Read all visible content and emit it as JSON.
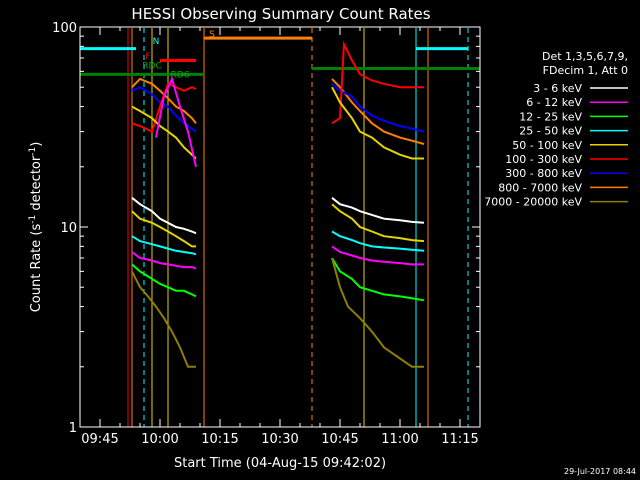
{
  "chart_data": {
    "type": "line",
    "title": "HESSI Observing Summary Count Rates",
    "xlabel": "Start Time (04-Aug-15 09:42:02)",
    "ylabel": "Count Rate (s",
    "ylabel_sup": "-1",
    "ylabel_tail": " detector",
    "ylabel_sup2": "-1",
    "ylabel_end": ")",
    "footer": "29-Jul-2017 08:44",
    "y_scale": "log",
    "ylim": [
      1,
      100
    ],
    "xlim": [
      "09:40",
      "11:20"
    ],
    "x_ticks": [
      "09:45",
      "10:00",
      "10:15",
      "10:30",
      "10:45",
      "11:00",
      "11:15"
    ],
    "y_ticks": [
      "1",
      "10",
      "100"
    ],
    "legend": {
      "placement": "right",
      "header": [
        "Det 1,3,5,6,7,9,",
        "FDecim 1, Att 0"
      ],
      "entries": [
        {
          "label": "3 - 6 keV",
          "color": "#ffffff"
        },
        {
          "label": "6 - 12 keV",
          "color": "#ff00ff"
        },
        {
          "label": "12 - 25 keV",
          "color": "#00ff00"
        },
        {
          "label": "25 - 50 keV",
          "color": "#00ffff"
        },
        {
          "label": "50 - 100 keV",
          "color": "#e5d400"
        },
        {
          "label": "100 - 300 keV",
          "color": "#ff0000"
        },
        {
          "label": "300 - 800 keV",
          "color": "#0000ff"
        },
        {
          "label": "800 - 7000 keV",
          "color": "#ff8000"
        },
        {
          "label": "7000 - 20000 keV",
          "color": "#8b8000"
        }
      ]
    },
    "annotations": [
      {
        "text": "N",
        "color": "#00ffff"
      },
      {
        "text": "F",
        "color": "#ff0000"
      },
      {
        "text": "RDC",
        "color": "#00aa00"
      },
      {
        "text": "RD6",
        "color": "#00aa00"
      },
      {
        "text": "S",
        "color": "#ff8000"
      }
    ],
    "series": [
      {
        "color": "#ff8000",
        "x": [
          "09:53",
          "09:55",
          "09:58",
          "10:00",
          "10:02",
          "10:04",
          "10:06",
          "10:08",
          "10:09"
        ],
        "y": [
          50,
          55,
          52,
          48,
          44,
          40,
          38,
          35,
          33
        ]
      },
      {
        "color": "#ff8000",
        "x": [
          "10:43",
          "10:45",
          "10:48",
          "10:50",
          "10:53",
          "10:56",
          "11:00",
          "11:03",
          "11:06"
        ],
        "y": [
          55,
          50,
          42,
          38,
          33,
          30,
          28,
          27,
          26
        ]
      },
      {
        "color": "#0000ff",
        "x": [
          "09:53",
          "09:55",
          "09:58",
          "10:00",
          "10:02",
          "10:04",
          "10:06",
          "10:08",
          "10:09"
        ],
        "y": [
          48,
          50,
          46,
          42,
          40,
          36,
          33,
          31,
          30
        ]
      },
      {
        "color": "#0000ff",
        "x": [
          "10:43",
          "10:45",
          "10:48",
          "10:50",
          "10:53",
          "10:56",
          "11:00",
          "11:03",
          "11:06"
        ],
        "y": [
          52,
          48,
          45,
          40,
          36,
          34,
          32,
          31,
          30
        ]
      },
      {
        "color": "#ff0000",
        "x": [
          "09:53",
          "09:55",
          "09:58",
          "10:00",
          "10:02",
          "10:04",
          "10:06",
          "10:08",
          "10:09"
        ],
        "y": [
          33,
          32,
          30,
          40,
          52,
          50,
          48,
          50,
          49
        ]
      },
      {
        "color": "#ff0000",
        "x": [
          "10:43",
          "10:45",
          "10:46",
          "10:48",
          "10:50",
          "10:53",
          "10:56",
          "11:00",
          "11:06"
        ],
        "y": [
          33,
          35,
          82,
          68,
          58,
          54,
          52,
          50,
          50
        ]
      },
      {
        "color": "#e5d400",
        "x": [
          "09:53",
          "09:55",
          "09:58",
          "10:00",
          "10:02",
          "10:04",
          "10:06",
          "10:08",
          "10:09"
        ],
        "y": [
          40,
          38,
          35,
          32,
          30,
          28,
          25,
          23,
          22
        ]
      },
      {
        "color": "#e5d400",
        "x": [
          "10:43",
          "10:45",
          "10:48",
          "10:50",
          "10:53",
          "10:56",
          "11:00",
          "11:03",
          "11:06"
        ],
        "y": [
          50,
          42,
          35,
          30,
          28,
          25,
          23,
          22,
          22
        ]
      },
      {
        "color": "#ff00ff",
        "x": [
          "09:59",
          "10:01",
          "10:03",
          "10:05",
          "10:07",
          "10:09"
        ],
        "y": [
          28,
          45,
          55,
          40,
          30,
          20
        ]
      },
      {
        "color": "#ffffff",
        "x": [
          "09:53",
          "09:55",
          "09:58",
          "10:00",
          "10:02",
          "10:04",
          "10:06",
          "10:08",
          "10:09"
        ],
        "y": [
          14,
          13,
          12,
          11,
          10.5,
          10,
          9.8,
          9.5,
          9.3
        ]
      },
      {
        "color": "#ffffff",
        "x": [
          "10:43",
          "10:45",
          "10:48",
          "10:50",
          "10:53",
          "10:56",
          "11:00",
          "11:03",
          "11:06"
        ],
        "y": [
          14,
          13,
          12.5,
          12,
          11.5,
          11,
          10.8,
          10.6,
          10.5
        ]
      },
      {
        "color": "#e5d400",
        "x": [
          "09:53",
          "09:55",
          "09:58",
          "10:00",
          "10:02",
          "10:04",
          "10:06",
          "10:08",
          "10:09"
        ],
        "y": [
          12,
          11,
          10.5,
          10,
          9.5,
          9,
          8.5,
          8,
          8
        ]
      },
      {
        "color": "#e5d400",
        "x": [
          "10:43",
          "10:45",
          "10:48",
          "10:50",
          "10:53",
          "10:56",
          "11:00",
          "11:03",
          "11:06"
        ],
        "y": [
          13,
          12,
          11,
          10,
          9.5,
          9,
          8.8,
          8.6,
          8.5
        ]
      },
      {
        "color": "#00ffff",
        "x": [
          "09:53",
          "09:55",
          "09:58",
          "10:00",
          "10:02",
          "10:04",
          "10:06",
          "10:08",
          "10:09"
        ],
        "y": [
          9,
          8.5,
          8.2,
          8,
          7.8,
          7.6,
          7.5,
          7.4,
          7.3
        ]
      },
      {
        "color": "#00ffff",
        "x": [
          "10:43",
          "10:45",
          "10:48",
          "10:50",
          "10:53",
          "10:56",
          "11:00",
          "11:03",
          "11:06"
        ],
        "y": [
          9.5,
          9,
          8.6,
          8.3,
          8,
          7.9,
          7.8,
          7.7,
          7.6
        ]
      },
      {
        "color": "#ff00ff",
        "x": [
          "09:53",
          "09:55",
          "09:58",
          "10:00",
          "10:02",
          "10:04",
          "10:06",
          "10:08",
          "10:09"
        ],
        "y": [
          7.5,
          7,
          6.8,
          6.6,
          6.5,
          6.4,
          6.3,
          6.3,
          6.2
        ]
      },
      {
        "color": "#ff00ff",
        "x": [
          "10:43",
          "10:45",
          "10:48",
          "10:50",
          "10:53",
          "10:56",
          "11:00",
          "11:03",
          "11:06"
        ],
        "y": [
          8,
          7.5,
          7.2,
          7,
          6.8,
          6.7,
          6.6,
          6.5,
          6.5
        ]
      },
      {
        "color": "#00ff00",
        "x": [
          "09:53",
          "09:55",
          "09:58",
          "10:00",
          "10:02",
          "10:04",
          "10:06",
          "10:08",
          "10:09"
        ],
        "y": [
          6.5,
          6,
          5.5,
          5.2,
          5,
          4.8,
          4.8,
          4.6,
          4.5
        ]
      },
      {
        "color": "#00ff00",
        "x": [
          "10:43",
          "10:45",
          "10:48",
          "10:50",
          "10:53",
          "10:56",
          "11:00",
          "11:03",
          "11:06"
        ],
        "y": [
          7,
          6,
          5.5,
          5,
          4.8,
          4.6,
          4.5,
          4.4,
          4.3
        ]
      },
      {
        "color": "#8b8000",
        "x": [
          "09:53",
          "09:55",
          "09:57",
          "09:59",
          "10:01",
          "10:03",
          "10:05",
          "10:07",
          "10:09"
        ],
        "y": [
          6,
          5,
          4.5,
          4,
          3.5,
          3,
          2.5,
          2,
          2
        ]
      },
      {
        "color": "#8b8000",
        "x": [
          "10:43",
          "10:45",
          "10:47",
          "10:50",
          "10:53",
          "10:56",
          "11:00",
          "11:03",
          "11:06"
        ],
        "y": [
          7,
          5,
          4,
          3.5,
          3,
          2.5,
          2.2,
          2,
          2
        ]
      }
    ],
    "bars": [
      {
        "color": "#00ffff",
        "x0": "09:40",
        "x1": "09:54",
        "y": 78
      },
      {
        "color": "#00ffff",
        "x0": "11:04",
        "x1": "11:17",
        "y": 78
      },
      {
        "color": "#ff8000",
        "x0": "10:11",
        "x1": "10:38",
        "y": 88
      },
      {
        "color": "#ff0000",
        "x0": "10:00",
        "x1": "10:09",
        "y": 68
      },
      {
        "color": "#008000",
        "x0": "09:40",
        "x1": "10:11",
        "y": 58
      },
      {
        "color": "#008000",
        "x0": "10:38",
        "x1": "11:20",
        "y": 62
      }
    ],
    "vlines": [
      {
        "x": "09:40",
        "color": "#00ffff",
        "style": "solid"
      },
      {
        "x": "09:56",
        "color": "#00ffff",
        "style": "dashed"
      },
      {
        "x": "11:04",
        "color": "#00ffff",
        "style": "solid"
      },
      {
        "x": "11:17",
        "color": "#00ffff",
        "style": "dashed"
      },
      {
        "x": "09:53",
        "color": "#ff8000",
        "style": "solid"
      },
      {
        "x": "10:11",
        "color": "#ff8000",
        "style": "solid"
      },
      {
        "x": "10:38",
        "color": "#ff8000",
        "style": "dashed"
      },
      {
        "x": "11:07",
        "color": "#ff8000",
        "style": "solid"
      },
      {
        "x": "09:58",
        "color": "#e5d400",
        "style": "solid"
      },
      {
        "x": "10:02",
        "color": "#e5d400",
        "style": "solid"
      },
      {
        "x": "10:51",
        "color": "#e5d400",
        "style": "solid"
      },
      {
        "x": "09:52",
        "color": "#ff0000",
        "style": "solid"
      }
    ]
  }
}
